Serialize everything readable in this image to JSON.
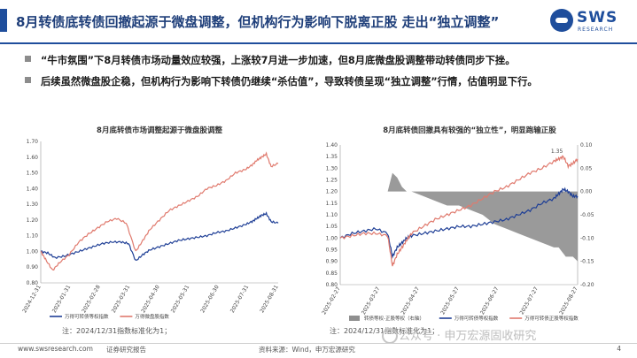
{
  "title": "8月转债底转债回撤起源于微盘调整，但机构行为影响下脱离正股 走出“独立调整”",
  "logo": {
    "text": "SWS",
    "sub": "RESEARCH"
  },
  "bullets": [
    "“牛市氛围”下8月转债市场动量效应较强，上涨较7月进一步加速，但8月底微盘股调整带动转债同步下挫。",
    "后续虽然微盘股企稳，但机构行为影响下转债仍继续“杀估值”，导致转债呈现“独立调整”行情，估值明显下行。"
  ],
  "colors": {
    "accent": "#1f4e9c",
    "blue_series": "#1f3f96",
    "red_series": "#e07a6e",
    "gray_area": "#8f8f8f"
  },
  "chart_data": [
    {
      "type": "line",
      "title": "8月底转债市场调整起源于微盘股调整",
      "ylim": [
        0.8,
        1.7
      ],
      "y_ticks": [
        "0.80",
        "0.90",
        "1.00",
        "1.10",
        "1.20",
        "1.30",
        "1.40",
        "1.50",
        "1.60",
        "1.70"
      ],
      "x_ticks": [
        "2024-12-31",
        "2025-01-31",
        "2025-02-28",
        "2025-03-31",
        "2025-04-30",
        "2025-05-31",
        "2025-06-30",
        "2025-07-31",
        "2025-08-31"
      ],
      "series": [
        {
          "name": "万得可转债等权指数",
          "color": "#1f3f96",
          "x": [
            0,
            0.03,
            0.06,
            0.1,
            0.14,
            0.18,
            0.22,
            0.26,
            0.3,
            0.34,
            0.37,
            0.4,
            0.43,
            0.46,
            0.5,
            0.54,
            0.58,
            0.62,
            0.66,
            0.7,
            0.74,
            0.78,
            0.82,
            0.86,
            0.89,
            0.91,
            0.93,
            0.95,
            0.97,
            1.0
          ],
          "y": [
            1.0,
            0.99,
            0.96,
            0.97,
            0.99,
            1.01,
            1.03,
            1.05,
            1.06,
            1.06,
            1.05,
            0.94,
            0.98,
            1.01,
            1.03,
            1.05,
            1.07,
            1.08,
            1.09,
            1.1,
            1.12,
            1.13,
            1.15,
            1.17,
            1.19,
            1.21,
            1.23,
            1.24,
            1.19,
            1.18
          ]
        },
        {
          "name": "万得微盘股指数",
          "color": "#e07a6e",
          "x": [
            0,
            0.02,
            0.05,
            0.08,
            0.12,
            0.16,
            0.2,
            0.24,
            0.28,
            0.32,
            0.36,
            0.4,
            0.43,
            0.46,
            0.5,
            0.54,
            0.58,
            0.62,
            0.66,
            0.7,
            0.74,
            0.78,
            0.82,
            0.86,
            0.89,
            0.91,
            0.93,
            0.95,
            0.97,
            1.0
          ],
          "y": [
            1.0,
            0.95,
            0.88,
            0.93,
            0.98,
            1.06,
            1.11,
            1.15,
            1.19,
            1.21,
            1.18,
            1.0,
            1.07,
            1.14,
            1.2,
            1.26,
            1.29,
            1.32,
            1.35,
            1.4,
            1.42,
            1.45,
            1.5,
            1.52,
            1.55,
            1.58,
            1.6,
            1.62,
            1.54,
            1.56
          ]
        }
      ]
    },
    {
      "type": "line",
      "title": "8月底转债回撤具有较强的“独立性”，明显跑输正股",
      "ylim": [
        0.8,
        1.4
      ],
      "y_ticks": [
        "0.80",
        "0.85",
        "0.90",
        "0.95",
        "1.00",
        "1.05",
        "1.10",
        "1.15",
        "1.20",
        "1.25",
        "1.30",
        "1.35",
        "1.40"
      ],
      "y2lim": [
        -0.2,
        0.1
      ],
      "y2_ticks": [
        "0.10",
        "0.05",
        "0.00",
        "-0.05",
        "-0.10",
        "-0.15",
        "-0.20"
      ],
      "x_ticks": [
        "2025-02-27",
        "2025-03-27",
        "2025-04-27",
        "2025-05-27",
        "2025-06-27",
        "2025-07-27",
        "2025-08-27"
      ],
      "annotation": "1.35",
      "series": [
        {
          "name": "转债等权-正股等权（右轴）",
          "color": "#8f8f8f",
          "type": "area",
          "axis": "right",
          "x": [
            0,
            0.05,
            0.1,
            0.15,
            0.2,
            0.22,
            0.24,
            0.26,
            0.28,
            0.3,
            0.35,
            0.4,
            0.45,
            0.5,
            0.55,
            0.6,
            0.65,
            0.7,
            0.75,
            0.8,
            0.85,
            0.9,
            0.92,
            0.95,
            0.98,
            1.0
          ],
          "y": [
            0.0,
            0.0,
            0.0,
            0.0,
            0.0,
            0.04,
            0.03,
            0.01,
            0.0,
            0.0,
            -0.01,
            -0.02,
            -0.03,
            -0.03,
            -0.04,
            -0.05,
            -0.07,
            -0.08,
            -0.09,
            -0.1,
            -0.11,
            -0.12,
            -0.12,
            -0.14,
            -0.14,
            -0.15
          ]
        },
        {
          "name": "万得可转债等权指数",
          "color": "#1f3f96",
          "axis": "left",
          "x": [
            0,
            0.05,
            0.1,
            0.15,
            0.2,
            0.22,
            0.24,
            0.26,
            0.28,
            0.3,
            0.35,
            0.4,
            0.45,
            0.5,
            0.55,
            0.6,
            0.65,
            0.7,
            0.75,
            0.8,
            0.85,
            0.9,
            0.92,
            0.94,
            0.96,
            0.98,
            1.0
          ],
          "y": [
            1.0,
            1.02,
            1.03,
            1.04,
            1.02,
            0.92,
            0.96,
            0.98,
            1.0,
            1.01,
            1.02,
            1.03,
            1.04,
            1.05,
            1.05,
            1.06,
            1.07,
            1.08,
            1.1,
            1.12,
            1.15,
            1.17,
            1.19,
            1.21,
            1.2,
            1.18,
            1.18
          ]
        },
        {
          "name": "万得可转债正股等权指数",
          "color": "#e07a6e",
          "axis": "left",
          "x": [
            0,
            0.05,
            0.1,
            0.15,
            0.2,
            0.22,
            0.24,
            0.26,
            0.28,
            0.3,
            0.35,
            0.4,
            0.45,
            0.5,
            0.55,
            0.6,
            0.65,
            0.7,
            0.75,
            0.8,
            0.85,
            0.9,
            0.92,
            0.94,
            0.96,
            0.98,
            1.0
          ],
          "y": [
            1.0,
            1.01,
            1.02,
            1.02,
            1.01,
            0.88,
            0.93,
            0.96,
            0.99,
            1.02,
            1.05,
            1.08,
            1.1,
            1.12,
            1.14,
            1.17,
            1.2,
            1.22,
            1.25,
            1.28,
            1.3,
            1.33,
            1.34,
            1.35,
            1.31,
            1.32,
            1.34
          ]
        }
      ]
    }
  ],
  "notes": [
    "注：2024/12/31指数标准化为1；",
    "注：2024/12/31指数标准化为1；"
  ],
  "footer": {
    "url": "www.swsresearch.com",
    "tag": "证券研究报告",
    "source": "资料来源：Wind，申万宏源研究",
    "watermark": "公众号 · 申万宏源固收研究",
    "page": "4"
  }
}
